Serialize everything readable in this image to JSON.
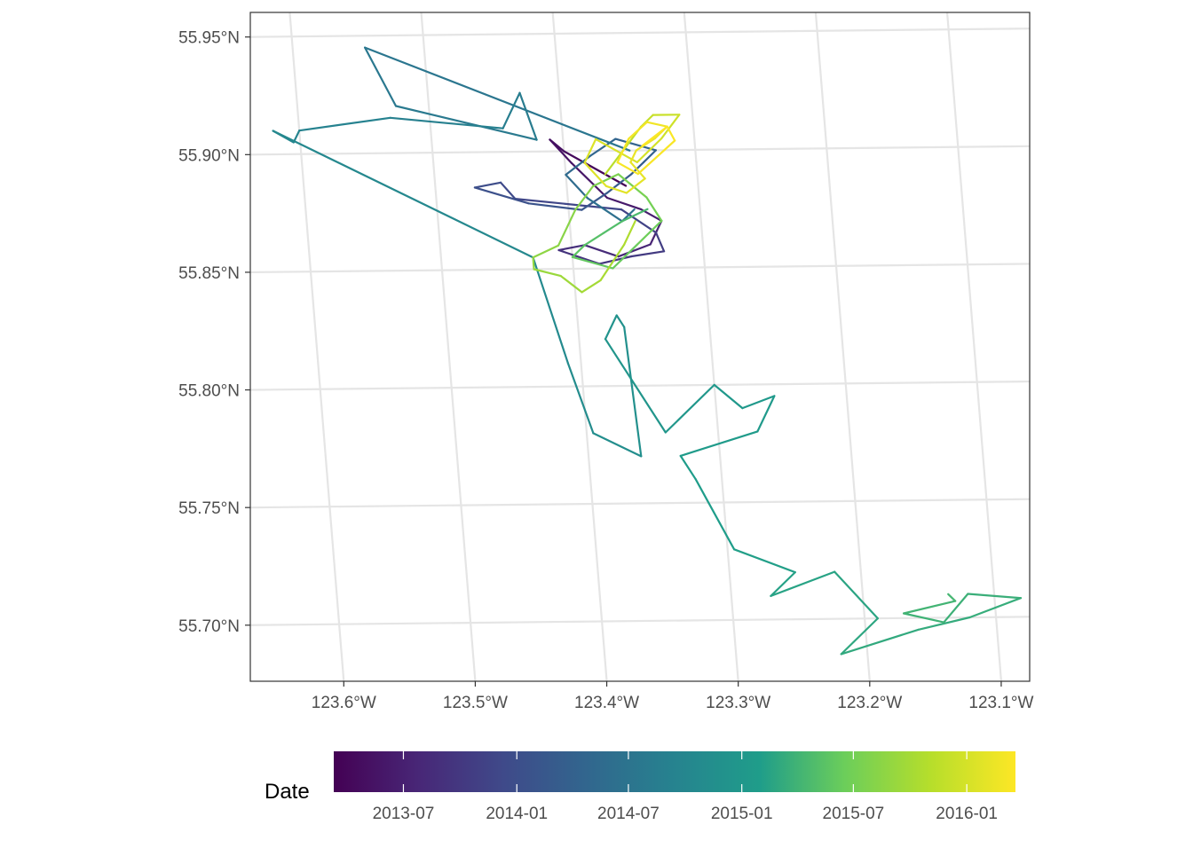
{
  "chart_data": {
    "type": "line",
    "title": "",
    "xlabel": "",
    "ylabel": "",
    "xlim": [
      -123.645,
      -123.055
    ],
    "ylim": [
      55.675,
      55.96
    ],
    "grid": true,
    "x_tick_labels": [
      "123.6°W",
      "123.5°W",
      "123.4°W",
      "123.3°W",
      "123.2°W",
      "123.1°W"
    ],
    "x_ticks": [
      -123.6,
      -123.5,
      -123.4,
      -123.3,
      -123.2,
      -123.1
    ],
    "y_tick_labels": [
      "55.70°N",
      "55.75°N",
      "55.80°N",
      "55.85°N",
      "55.90°N",
      "55.95°N"
    ],
    "y_ticks": [
      55.7,
      55.75,
      55.8,
      55.85,
      55.9,
      55.95
    ],
    "legend": {
      "title": "Date",
      "position": "bottom",
      "scale": "viridis",
      "range": [
        "2013-03-10",
        "2016-03-20"
      ],
      "breaks": [
        "2013-07",
        "2014-01",
        "2014-07",
        "2015-01",
        "2015-07",
        "2016-01"
      ]
    },
    "colors": {
      "viridis": [
        "#440154",
        "#482777",
        "#3F4A8A",
        "#31678E",
        "#26838F",
        "#1F9D8A",
        "#6CCE5A",
        "#B6DE2B",
        "#FDE725"
      ]
    },
    "series": [
      {
        "x": [
          -123.355,
          -123.37,
          -123.385,
          -123.4,
          -123.41,
          -123.395,
          -123.37,
          -123.345,
          -123.33,
          -123.34,
          -123.365,
          -123.39,
          -123.41,
          -123.38,
          -123.355,
          -123.33,
          -123.335,
          -123.36,
          -123.44,
          -123.45,
          -123.47,
          -123.43,
          -123.39,
          -123.37,
          -123.35,
          -123.34,
          -123.33,
          -123.36,
          -123.38,
          -123.4,
          -123.385,
          -123.36,
          -123.35
        ],
        "y": [
          55.885,
          55.89,
          55.895,
          55.9,
          55.905,
          55.895,
          55.88,
          55.875,
          55.87,
          55.86,
          55.855,
          55.86,
          55.858,
          55.852,
          55.855,
          55.857,
          55.865,
          55.875,
          55.88,
          55.887,
          55.885,
          55.878,
          55.875,
          55.882,
          55.89,
          55.895,
          55.9,
          55.905,
          55.898,
          55.89,
          55.88,
          55.87,
          55.875
        ],
        "date": [
          "2013-03-10",
          "2013-03-25",
          "2013-04-10",
          "2013-04-25",
          "2013-05-10",
          "2013-05-25",
          "2013-06-10",
          "2013-06-25",
          "2013-07-10",
          "2013-07-25",
          "2013-08-10",
          "2013-08-25",
          "2013-09-10",
          "2013-09-25",
          "2013-10-10",
          "2013-10-25",
          "2013-11-10",
          "2013-11-25",
          "2013-12-10",
          "2013-12-25",
          "2014-01-10",
          "2014-01-25",
          "2014-02-10",
          "2014-02-25",
          "2014-03-10",
          "2014-03-25",
          "2014-04-10",
          "2014-04-25",
          "2014-05-10",
          "2014-05-25",
          "2014-06-10",
          "2014-06-25",
          "2014-07-05"
        ]
      },
      {
        "x": [
          -123.35,
          -123.545,
          -123.525,
          -123.42,
          -123.43,
          -123.445,
          -123.53,
          -123.6,
          -123.605,
          -123.62,
          -123.43,
          -123.41,
          -123.395,
          -123.36,
          -123.365,
          -123.37,
          -123.38,
          -123.34,
          -123.3,
          -123.28,
          -123.255,
          -123.27,
          -123.33,
          -123.32,
          -123.295,
          -123.25,
          -123.27,
          -123.22,
          -123.19,
          -123.21,
          -123.22,
          -123.16,
          -123.12,
          -123.08,
          -123.12,
          -123.14,
          -123.17,
          -123.13,
          -123.135
        ],
        "y": [
          55.9,
          55.945,
          55.92,
          55.905,
          55.925,
          55.91,
          55.915,
          55.91,
          55.905,
          55.91,
          55.855,
          55.81,
          55.78,
          55.77,
          55.825,
          55.83,
          55.82,
          55.78,
          55.8,
          55.79,
          55.795,
          55.78,
          55.77,
          55.76,
          55.73,
          55.72,
          55.71,
          55.72,
          55.7,
          55.69,
          55.685,
          55.695,
          55.7,
          55.708,
          55.71,
          55.698,
          55.702,
          55.707,
          55.71
        ],
        "date": [
          "2014-07-10",
          "2014-07-20",
          "2014-07-30",
          "2014-08-10",
          "2014-08-20",
          "2014-08-30",
          "2014-09-10",
          "2014-09-20",
          "2014-09-30",
          "2014-10-10",
          "2014-10-20",
          "2014-10-30",
          "2014-11-10",
          "2014-11-20",
          "2014-11-30",
          "2014-12-10",
          "2014-12-20",
          "2014-12-30",
          "2015-01-05",
          "2015-01-10",
          "2015-01-15",
          "2015-01-20",
          "2015-01-25",
          "2015-01-30",
          "2015-02-05",
          "2015-02-10",
          "2015-02-15",
          "2015-02-20",
          "2015-02-25",
          "2015-03-01",
          "2015-03-05",
          "2015-03-10",
          "2015-03-15",
          "2015-03-20",
          "2015-03-25",
          "2015-03-30",
          "2015-04-05",
          "2015-04-10",
          "2015-04-15"
        ]
      },
      {
        "x": [
          -123.34,
          -123.36,
          -123.375,
          -123.39,
          -123.4,
          -123.37,
          -123.35,
          -123.33,
          -123.34,
          -123.36,
          -123.38,
          -123.395,
          -123.41,
          -123.43,
          -123.43,
          -123.41,
          -123.395,
          -123.38,
          -123.36,
          -123.35
        ],
        "y": [
          55.875,
          55.87,
          55.865,
          55.86,
          55.855,
          55.85,
          55.86,
          55.87,
          55.88,
          55.89,
          55.885,
          55.875,
          55.86,
          55.855,
          55.85,
          55.847,
          55.84,
          55.845,
          55.86,
          55.87
        ],
        "date": [
          "2015-04-20",
          "2015-05-01",
          "2015-05-10",
          "2015-05-20",
          "2015-06-01",
          "2015-06-10",
          "2015-06-20",
          "2015-07-01",
          "2015-07-10",
          "2015-07-20",
          "2015-08-01",
          "2015-08-10",
          "2015-08-20",
          "2015-09-01",
          "2015-09-10",
          "2015-09-20",
          "2015-10-01",
          "2015-10-10",
          "2015-10-20",
          "2015-11-01"
        ]
      },
      {
        "x": [
          -123.37,
          -123.355,
          -123.34,
          -123.33,
          -123.31,
          -123.325,
          -123.345,
          -123.36,
          -123.375,
          -123.385,
          -123.37,
          -123.355,
          -123.34,
          -123.35,
          -123.345,
          -123.33,
          -123.32,
          -123.335,
          -123.35,
          -123.36,
          -123.345,
          -123.33,
          -123.315,
          -123.32,
          -123.34
        ],
        "y": [
          55.89,
          55.9,
          55.91,
          55.915,
          55.915,
          55.905,
          55.895,
          55.9,
          55.905,
          55.895,
          55.885,
          55.882,
          55.888,
          55.895,
          55.9,
          55.905,
          55.91,
          55.912,
          55.905,
          55.895,
          55.89,
          55.897,
          55.904,
          55.91,
          55.902
        ],
        "date": [
          "2015-11-10",
          "2015-11-20",
          "2015-12-01",
          "2015-12-10",
          "2015-12-20",
          "2016-01-01",
          "2016-01-05",
          "2016-01-10",
          "2016-01-15",
          "2016-01-20",
          "2016-01-25",
          "2016-02-01",
          "2016-02-05",
          "2016-02-10",
          "2016-02-15",
          "2016-02-20",
          "2016-02-25",
          "2016-03-01",
          "2016-03-05",
          "2016-03-08",
          "2016-03-10",
          "2016-03-12",
          "2016-03-15",
          "2016-03-18",
          "2016-03-20"
        ]
      }
    ]
  }
}
